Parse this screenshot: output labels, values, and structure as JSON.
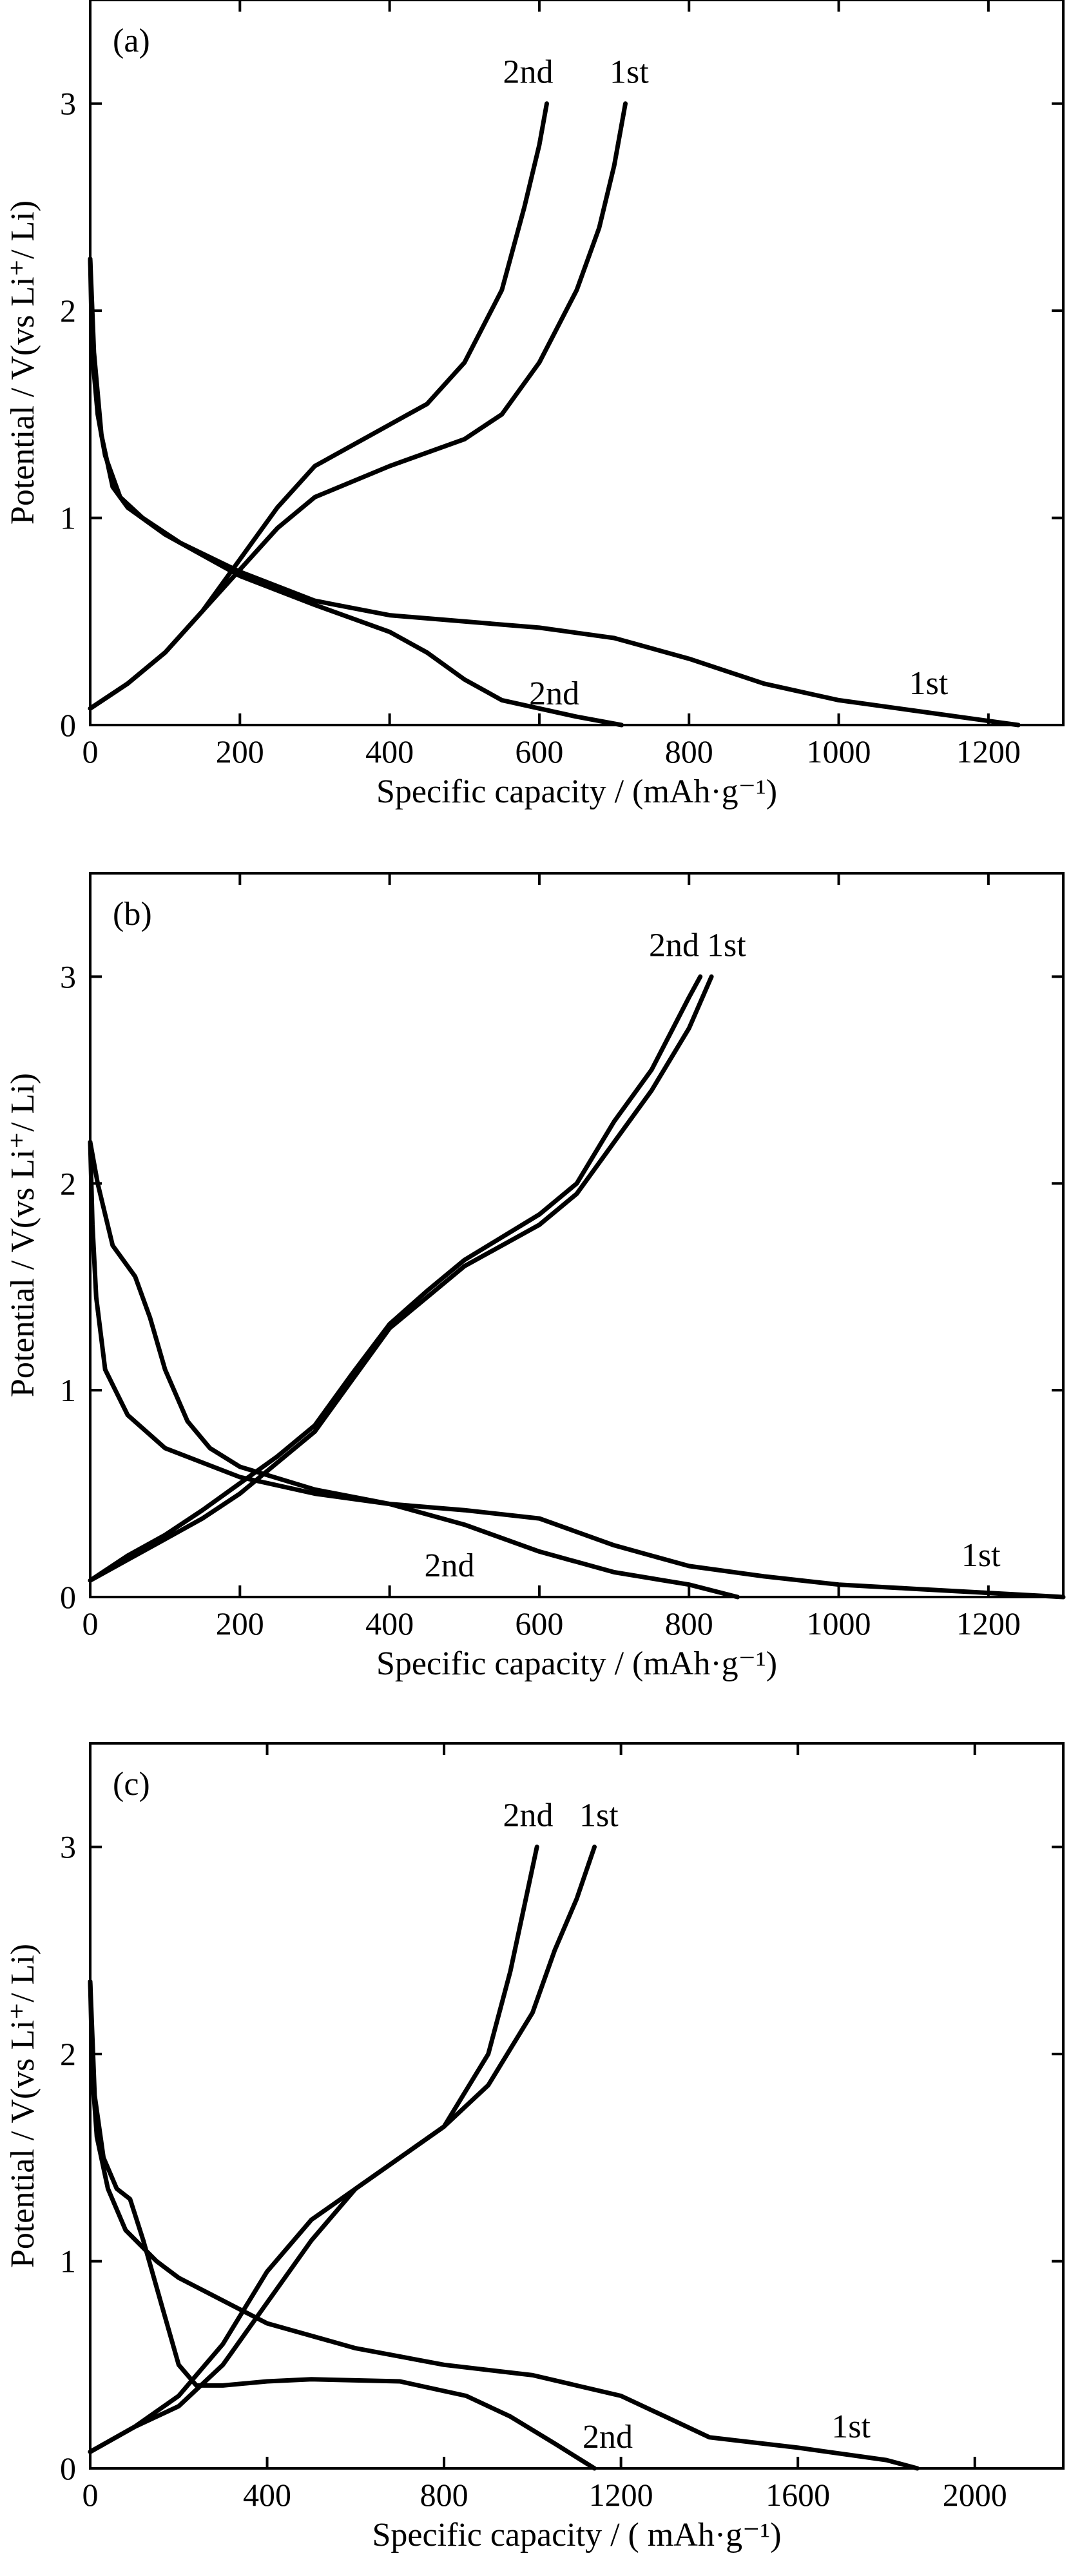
{
  "chart_data": [
    {
      "type": "line",
      "panel_label": "(a)",
      "xlabel": "Specific capacity / (mAh·g⁻¹)",
      "ylabel": "Potential / V(vs Li⁺/ Li)",
      "xlim": [
        0,
        1300
      ],
      "ylim": [
        0,
        3.5
      ],
      "xticks": [
        0,
        200,
        400,
        600,
        800,
        1000,
        1200
      ],
      "yticks": [
        0,
        1,
        2,
        3
      ],
      "grid": false,
      "series": [
        {
          "name": "1st",
          "label_at": [
            720,
            3.1
          ],
          "points": [
            [
              0,
              2.25
            ],
            [
              2,
              1.9
            ],
            [
              5,
              1.7
            ],
            [
              10,
              1.5
            ],
            [
              20,
              1.3
            ],
            [
              40,
              1.1
            ],
            [
              70,
              1.0
            ],
            [
              120,
              0.88
            ],
            [
              200,
              0.74
            ],
            [
              300,
              0.6
            ],
            [
              400,
              0.53
            ],
            [
              500,
              0.5
            ],
            [
              600,
              0.47
            ],
            [
              700,
              0.42
            ],
            [
              800,
              0.32
            ],
            [
              900,
              0.2
            ],
            [
              1000,
              0.12
            ],
            [
              1100,
              0.07
            ],
            [
              1200,
              0.02
            ],
            [
              1240,
              0
            ]
          ]
        },
        {
          "name": "1st",
          "label_at": [
            1120,
            0.15
          ],
          "points": [
            [
              0,
              0.08
            ],
            [
              50,
              0.2
            ],
            [
              100,
              0.35
            ],
            [
              150,
              0.55
            ],
            [
              200,
              0.75
            ],
            [
              250,
              0.95
            ],
            [
              300,
              1.1
            ],
            [
              400,
              1.25
            ],
            [
              500,
              1.38
            ],
            [
              550,
              1.5
            ],
            [
              600,
              1.75
            ],
            [
              650,
              2.1
            ],
            [
              680,
              2.4
            ],
            [
              700,
              2.7
            ],
            [
              715,
              3.0
            ]
          ]
        },
        {
          "name": "2nd",
          "label_at": [
            585,
            3.1
          ],
          "points": [
            [
              0,
              2.25
            ],
            [
              5,
              1.8
            ],
            [
              15,
              1.4
            ],
            [
              30,
              1.15
            ],
            [
              50,
              1.05
            ],
            [
              100,
              0.92
            ],
            [
              150,
              0.82
            ],
            [
              200,
              0.72
            ],
            [
              300,
              0.58
            ],
            [
              400,
              0.45
            ],
            [
              450,
              0.35
            ],
            [
              500,
              0.22
            ],
            [
              550,
              0.12
            ],
            [
              600,
              0.08
            ],
            [
              650,
              0.04
            ],
            [
              710,
              0
            ]
          ]
        },
        {
          "name": "2nd",
          "label_at": [
            620,
            0.1
          ],
          "points": [
            [
              0,
              0.08
            ],
            [
              50,
              0.2
            ],
            [
              100,
              0.35
            ],
            [
              150,
              0.55
            ],
            [
              200,
              0.8
            ],
            [
              250,
              1.05
            ],
            [
              300,
              1.25
            ],
            [
              400,
              1.45
            ],
            [
              450,
              1.55
            ],
            [
              500,
              1.75
            ],
            [
              550,
              2.1
            ],
            [
              580,
              2.5
            ],
            [
              600,
              2.8
            ],
            [
              610,
              3.0
            ]
          ]
        }
      ]
    },
    {
      "type": "line",
      "panel_label": "(b)",
      "xlabel": "Specific capacity / (mAh·g⁻¹)",
      "ylabel": "Potential / V(vs Li⁺/ Li)",
      "xlim": [
        0,
        1300
      ],
      "ylim": [
        0,
        3.5
      ],
      "xticks": [
        0,
        200,
        400,
        600,
        800,
        1000,
        1200
      ],
      "yticks": [
        0,
        1,
        2,
        3
      ],
      "grid": false,
      "series": [
        {
          "name": "1st",
          "label_at": [
            850,
            3.1
          ],
          "points": [
            [
              0,
              2.2
            ],
            [
              3,
              1.8
            ],
            [
              8,
              1.45
            ],
            [
              20,
              1.1
            ],
            [
              50,
              0.88
            ],
            [
              100,
              0.72
            ],
            [
              200,
              0.58
            ],
            [
              300,
              0.5
            ],
            [
              400,
              0.45
            ],
            [
              500,
              0.42
            ],
            [
              600,
              0.38
            ],
            [
              700,
              0.25
            ],
            [
              800,
              0.15
            ],
            [
              900,
              0.1
            ],
            [
              1000,
              0.06
            ],
            [
              1100,
              0.04
            ],
            [
              1200,
              0.02
            ],
            [
              1300,
              0.0
            ]
          ]
        },
        {
          "name": "1st",
          "label_at": [
            1190,
            0.15
          ],
          "points": [
            [
              0,
              0.08
            ],
            [
              50,
              0.18
            ],
            [
              100,
              0.28
            ],
            [
              150,
              0.38
            ],
            [
              200,
              0.5
            ],
            [
              250,
              0.65
            ],
            [
              300,
              0.8
            ],
            [
              350,
              1.05
            ],
            [
              400,
              1.3
            ],
            [
              450,
              1.45
            ],
            [
              500,
              1.6
            ],
            [
              600,
              1.8
            ],
            [
              650,
              1.95
            ],
            [
              700,
              2.2
            ],
            [
              750,
              2.45
            ],
            [
              800,
              2.75
            ],
            [
              830,
              3.0
            ]
          ]
        },
        {
          "name": "2nd",
          "label_at": [
            780,
            3.1
          ],
          "points": [
            [
              0,
              2.2
            ],
            [
              10,
              2.0
            ],
            [
              30,
              1.7
            ],
            [
              60,
              1.55
            ],
            [
              80,
              1.35
            ],
            [
              100,
              1.1
            ],
            [
              130,
              0.85
            ],
            [
              160,
              0.72
            ],
            [
              200,
              0.63
            ],
            [
              300,
              0.52
            ],
            [
              400,
              0.45
            ],
            [
              500,
              0.35
            ],
            [
              600,
              0.22
            ],
            [
              700,
              0.12
            ],
            [
              800,
              0.06
            ],
            [
              865,
              0
            ]
          ]
        },
        {
          "name": "2nd",
          "label_at": [
            480,
            0.1
          ],
          "points": [
            [
              0,
              0.08
            ],
            [
              50,
              0.2
            ],
            [
              100,
              0.3
            ],
            [
              150,
              0.42
            ],
            [
              200,
              0.55
            ],
            [
              250,
              0.68
            ],
            [
              300,
              0.83
            ],
            [
              350,
              1.08
            ],
            [
              400,
              1.32
            ],
            [
              450,
              1.48
            ],
            [
              500,
              1.63
            ],
            [
              600,
              1.85
            ],
            [
              650,
              2.0
            ],
            [
              700,
              2.3
            ],
            [
              750,
              2.55
            ],
            [
              800,
              2.9
            ],
            [
              815,
              3.0
            ]
          ]
        }
      ]
    },
    {
      "type": "line",
      "panel_label": "(c)",
      "xlabel": "Specific capacity / ( mAh·g⁻¹)",
      "ylabel": "Potential / V(vs Li⁺/ Li)",
      "xlim": [
        0,
        2200
      ],
      "ylim": [
        0,
        3.5
      ],
      "xticks": [
        0,
        400,
        800,
        1200,
        1600,
        2000
      ],
      "yticks": [
        0,
        1,
        2,
        3
      ],
      "grid": false,
      "series": [
        {
          "name": "1st",
          "label_at": [
            1150,
            3.1
          ],
          "points": [
            [
              0,
              2.35
            ],
            [
              5,
              1.9
            ],
            [
              15,
              1.6
            ],
            [
              40,
              1.35
            ],
            [
              80,
              1.15
            ],
            [
              150,
              1.0
            ],
            [
              200,
              0.92
            ],
            [
              400,
              0.7
            ],
            [
              600,
              0.58
            ],
            [
              800,
              0.5
            ],
            [
              1000,
              0.45
            ],
            [
              1200,
              0.35
            ],
            [
              1300,
              0.25
            ],
            [
              1400,
              0.15
            ],
            [
              1600,
              0.1
            ],
            [
              1800,
              0.04
            ],
            [
              1870,
              0
            ]
          ]
        },
        {
          "name": "1st",
          "label_at": [
            1720,
            0.15
          ],
          "points": [
            [
              0,
              0.08
            ],
            [
              100,
              0.2
            ],
            [
              200,
              0.3
            ],
            [
              300,
              0.5
            ],
            [
              400,
              0.8
            ],
            [
              500,
              1.1
            ],
            [
              600,
              1.35
            ],
            [
              700,
              1.5
            ],
            [
              800,
              1.65
            ],
            [
              900,
              1.85
            ],
            [
              1000,
              2.2
            ],
            [
              1050,
              2.5
            ],
            [
              1100,
              2.75
            ],
            [
              1140,
              3.0
            ]
          ]
        },
        {
          "name": "2nd",
          "label_at": [
            990,
            3.1
          ],
          "points": [
            [
              0,
              2.35
            ],
            [
              10,
              1.8
            ],
            [
              30,
              1.5
            ],
            [
              60,
              1.35
            ],
            [
              90,
              1.3
            ],
            [
              120,
              1.1
            ],
            [
              160,
              0.8
            ],
            [
              200,
              0.5
            ],
            [
              240,
              0.4
            ],
            [
              300,
              0.4
            ],
            [
              400,
              0.42
            ],
            [
              500,
              0.43
            ],
            [
              700,
              0.42
            ],
            [
              850,
              0.35
            ],
            [
              950,
              0.25
            ],
            [
              1050,
              0.12
            ],
            [
              1140,
              0
            ]
          ]
        },
        {
          "name": "2nd",
          "label_at": [
            1170,
            0.1
          ],
          "points": [
            [
              0,
              0.08
            ],
            [
              100,
              0.2
            ],
            [
              200,
              0.35
            ],
            [
              300,
              0.6
            ],
            [
              400,
              0.95
            ],
            [
              500,
              1.2
            ],
            [
              600,
              1.35
            ],
            [
              700,
              1.5
            ],
            [
              800,
              1.65
            ],
            [
              900,
              2.0
            ],
            [
              950,
              2.4
            ],
            [
              990,
              2.8
            ],
            [
              1010,
              3.0
            ]
          ]
        }
      ]
    }
  ]
}
